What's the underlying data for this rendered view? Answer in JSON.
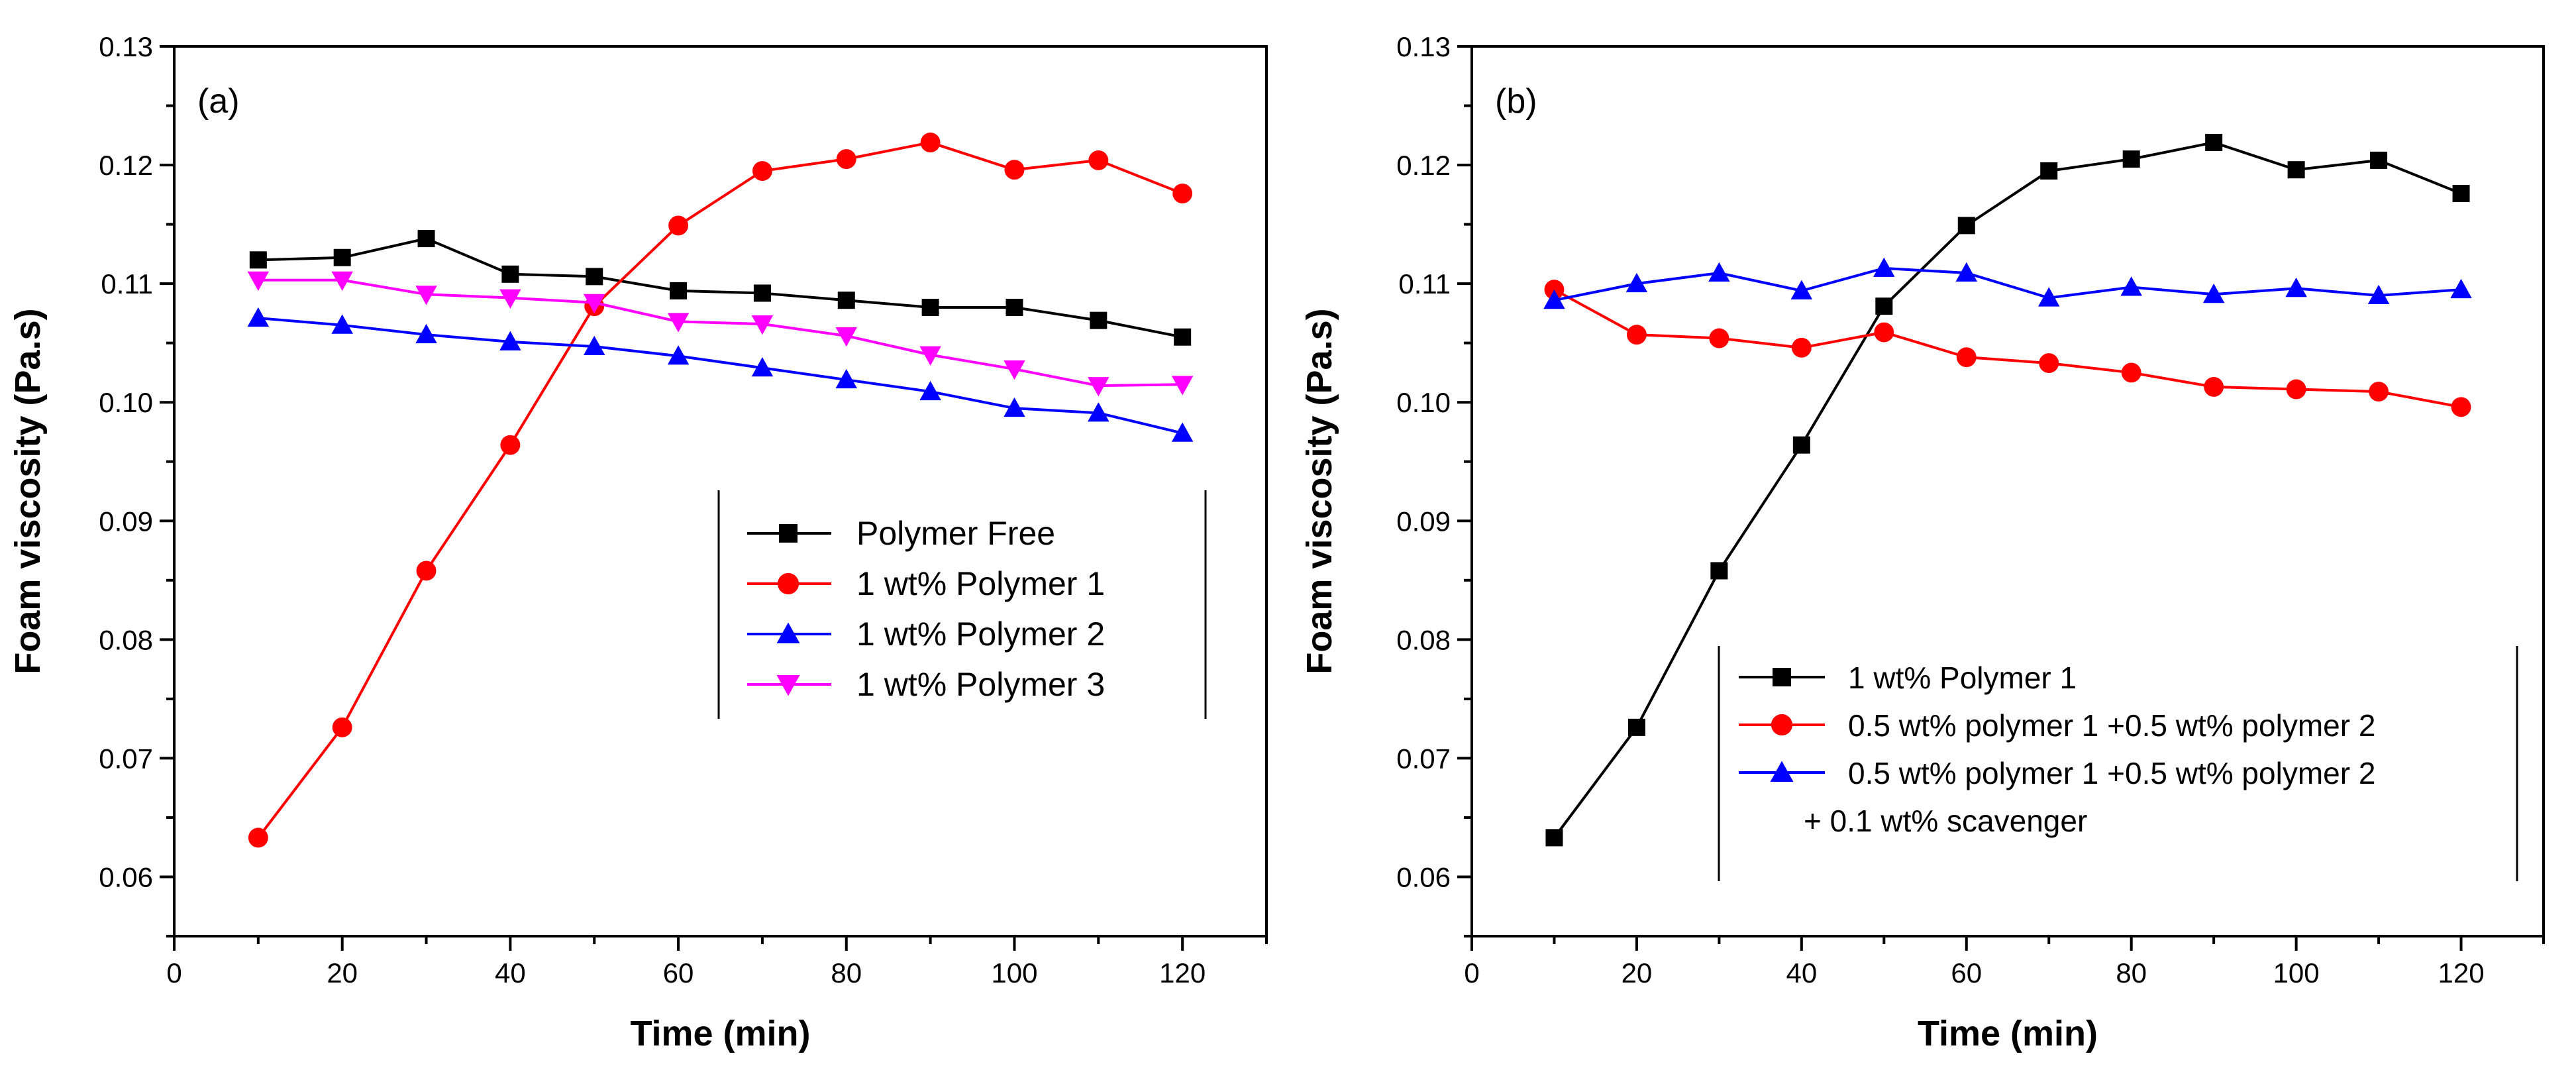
{
  "chart_data": [
    {
      "type": "line",
      "panel_label": "(a)",
      "xlabel": "Time (min)",
      "ylabel": "Foam viscosity (Pa.s)",
      "xlim": [
        0,
        130
      ],
      "ylim": [
        0.055,
        0.13
      ],
      "xticks": [
        "0",
        "20",
        "40",
        "60",
        "80",
        "100",
        "120"
      ],
      "yticks": [
        "0.06",
        "0.07",
        "0.08",
        "0.09",
        "0.10",
        "0.11",
        "0.12",
        "0.13"
      ],
      "legend_position": "center-right",
      "x": [
        10,
        20,
        30,
        40,
        50,
        60,
        70,
        80,
        90,
        100,
        110,
        120
      ],
      "series": [
        {
          "name": "Polymer Free",
          "color": "#000000",
          "marker": "square",
          "values": [
            0.112,
            0.1122,
            0.1138,
            0.1108,
            0.1106,
            0.1094,
            0.1092,
            0.1086,
            0.108,
            0.108,
            0.1069,
            0.1055
          ]
        },
        {
          "name": "1 wt% Polymer 1",
          "color": "#ff0000",
          "marker": "circle",
          "values": [
            0.0633,
            0.0726,
            0.0858,
            0.0964,
            0.1081,
            0.1149,
            0.1195,
            0.1205,
            0.1219,
            0.1196,
            0.1204,
            0.1176
          ]
        },
        {
          "name": "1 wt% Polymer 2",
          "color": "#0000ff",
          "marker": "triangle-up",
          "values": [
            0.1071,
            0.1065,
            0.1057,
            0.1051,
            0.1047,
            0.1039,
            0.1029,
            0.1019,
            0.1009,
            0.0995,
            0.0991,
            0.0974
          ]
        },
        {
          "name": "1 wt% Polymer 3",
          "color": "#ff00ff",
          "marker": "triangle-down",
          "values": [
            0.1103,
            0.1103,
            0.1091,
            0.1088,
            0.1084,
            0.1068,
            0.1066,
            0.1056,
            0.104,
            0.1028,
            0.1014,
            0.1015
          ]
        }
      ]
    },
    {
      "type": "line",
      "panel_label": "(b)",
      "xlabel": "Time (min)",
      "ylabel": "Foam viscosity (Pa.s)",
      "xlim": [
        0,
        130
      ],
      "ylim": [
        0.055,
        0.13
      ],
      "xticks": [
        "0",
        "20",
        "40",
        "60",
        "80",
        "100",
        "120"
      ],
      "yticks": [
        "0.06",
        "0.07",
        "0.08",
        "0.09",
        "0.10",
        "0.11",
        "0.12",
        "0.13"
      ],
      "legend_position": "bottom-right",
      "legend_note": "+ 0.1 wt% scavenger",
      "x": [
        10,
        20,
        30,
        40,
        50,
        60,
        70,
        80,
        90,
        100,
        110,
        120
      ],
      "series": [
        {
          "name": "1 wt% Polymer 1",
          "color": "#000000",
          "marker": "square",
          "values": [
            0.0633,
            0.0726,
            0.0858,
            0.0964,
            0.1081,
            0.1149,
            0.1195,
            0.1205,
            0.1219,
            0.1196,
            0.1204,
            0.1176
          ]
        },
        {
          "name": "0.5 wt% polymer 1 +0.5 wt% polymer 2",
          "color": "#ff0000",
          "marker": "circle",
          "values": [
            0.1095,
            0.1057,
            0.1054,
            0.1046,
            0.1059,
            0.1038,
            0.1033,
            0.1025,
            0.1013,
            0.1011,
            0.1009,
            0.0996
          ]
        },
        {
          "name": "0.5 wt% polymer 1 +0.5 wt% polymer 2",
          "color": "#0000ff",
          "marker": "triangle-up",
          "values": [
            0.1086,
            0.11,
            0.1109,
            0.1094,
            0.1113,
            0.1109,
            0.1088,
            0.1097,
            0.1091,
            0.1096,
            0.109,
            0.1095
          ]
        }
      ]
    }
  ]
}
